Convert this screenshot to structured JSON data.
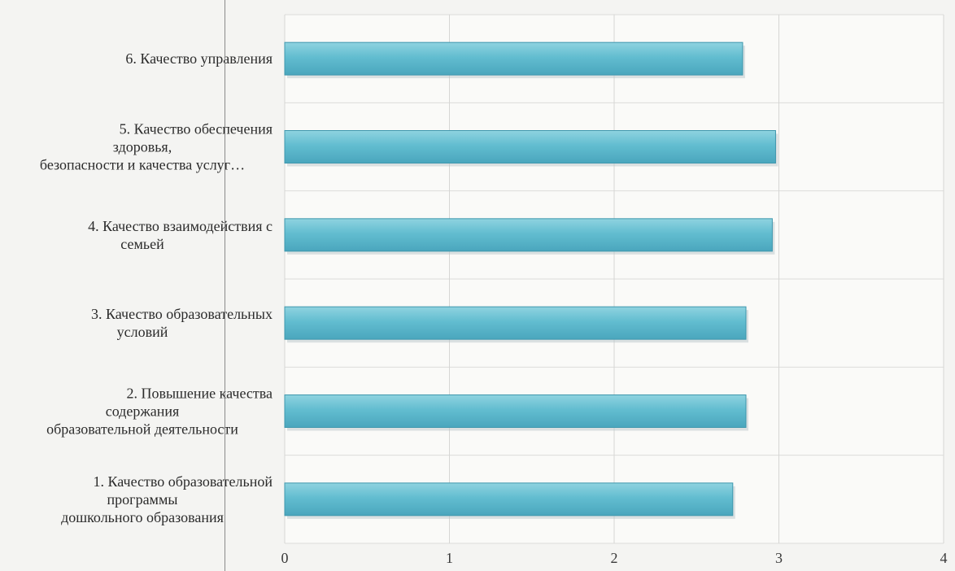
{
  "chart_data": {
    "type": "bar",
    "orientation": "horizontal",
    "categories": [
      [
        "6. Качество управления"
      ],
      [
        "5. Качество обеспечения",
        "здоровья,",
        "безопасности и качества услуг…"
      ],
      [
        "4. Качество взаимодействия с",
        "семьей"
      ],
      [
        "3. Качество образовательных",
        "условий"
      ],
      [
        "2. Повышение качества",
        "содержания",
        "образовательной деятельности"
      ],
      [
        "1. Качество образовательной",
        "программы",
        "дошкольного образования"
      ]
    ],
    "values": [
      2.78,
      2.98,
      2.96,
      2.8,
      2.8,
      2.72
    ],
    "xlim": [
      0,
      4
    ],
    "xticks": [
      "0",
      "1",
      "2",
      "3",
      "4"
    ],
    "grid": true,
    "bar_color": "#62bdd0",
    "bar_edge_color": "#3e97ad",
    "title": "",
    "xlabel": "",
    "ylabel": ""
  }
}
